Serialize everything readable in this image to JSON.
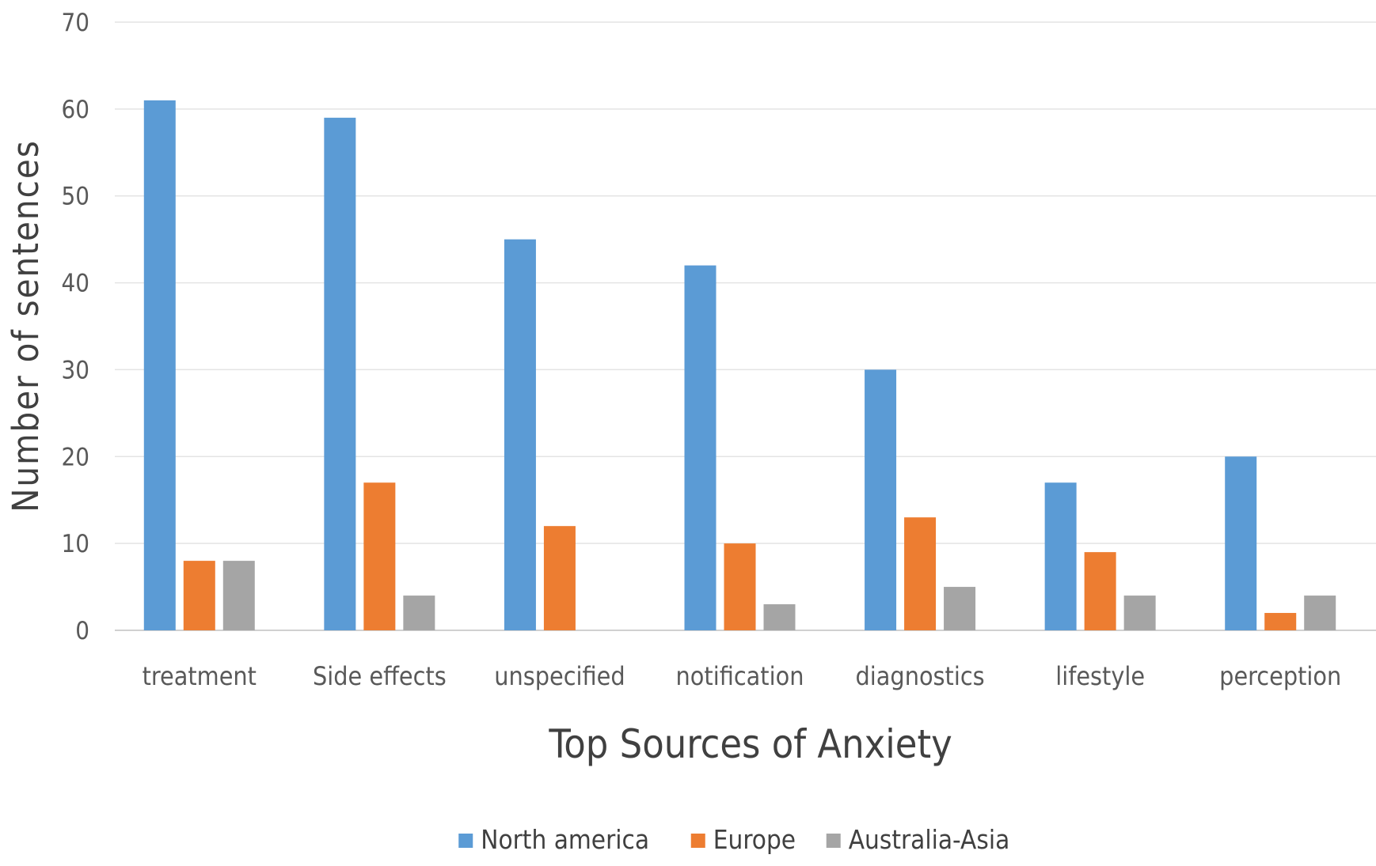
{
  "chart_data": {
    "type": "bar",
    "title": "",
    "xlabel": "Top Sources of Anxiety",
    "ylabel": "Number of sentences",
    "ylim": [
      0,
      70
    ],
    "yticks": [
      0,
      10,
      20,
      30,
      40,
      50,
      60,
      70
    ],
    "grid": true,
    "legend_position": "bottom",
    "categories": [
      "treatment",
      "Side effects",
      "unspecified",
      "notification",
      "diagnostics",
      "lifestyle",
      "perception"
    ],
    "series": [
      {
        "name": "North america",
        "color": "#5B9BD5",
        "values": [
          61,
          59,
          45,
          42,
          30,
          17,
          20
        ]
      },
      {
        "name": "Europe",
        "color": "#ED7D31",
        "values": [
          8,
          17,
          12,
          10,
          13,
          9,
          2
        ]
      },
      {
        "name": "Australia-Asia",
        "color": "#A5A5A5",
        "values": [
          8,
          4,
          0,
          3,
          5,
          4,
          4
        ]
      }
    ]
  }
}
